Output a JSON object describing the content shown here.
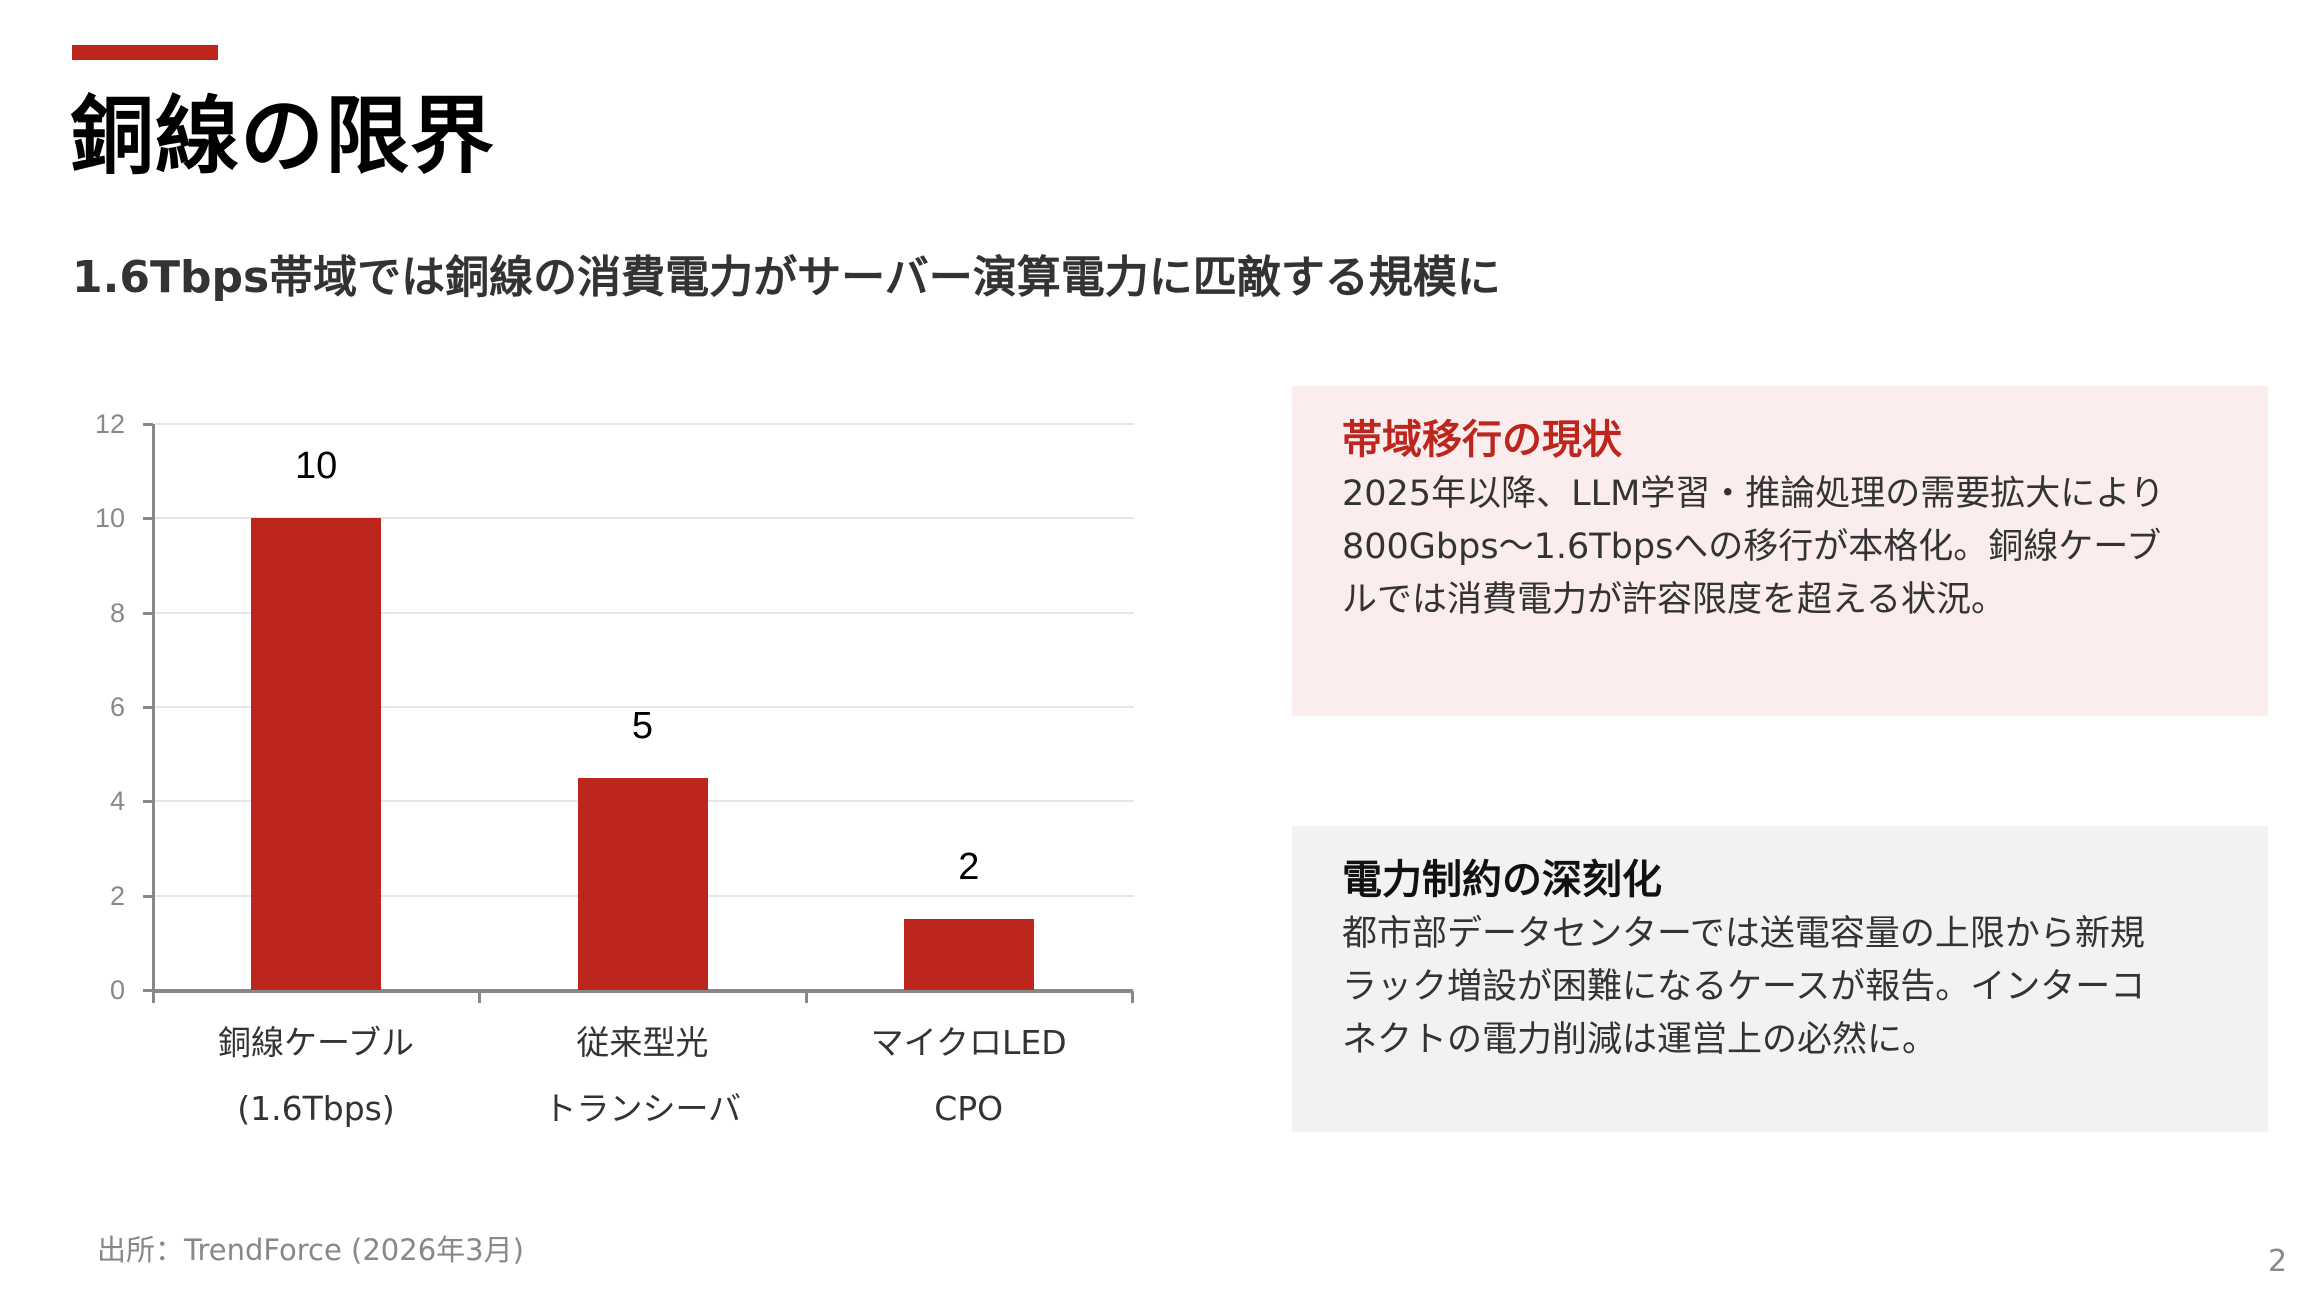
{
  "slide": {
    "title": "銅線の限界",
    "subtitle": "1.6Tbps帯域では銅線の消費電力がサーバー演算電力に匹敵する規模に",
    "accent_color": "#BC261D",
    "source": "出所：TrendForce (2026年3月)",
    "page_number": "2"
  },
  "chart_data": {
    "type": "bar",
    "title": "",
    "xlabel": "",
    "ylabel": "",
    "categories": [
      [
        "銅線ケーブル",
        "(1.6Tbps)"
      ],
      [
        "従来型光",
        "トランシーバ"
      ],
      [
        "マイクロLED",
        "CPO"
      ]
    ],
    "categories_flat": [
      "銅線ケーブル (1.6Tbps)",
      "従来型光トランシーバ",
      "マイクロLED CPO"
    ],
    "values": [
      10,
      4.5,
      1.5
    ],
    "data_labels": [
      "10",
      "5",
      "2"
    ],
    "ylim": [
      0,
      12
    ],
    "yticks": [
      0,
      2,
      4,
      6,
      8,
      10,
      12
    ],
    "grid": true,
    "legend": null,
    "bar_color": "#BC261D"
  },
  "panels": [
    {
      "heading": "帯域移行の現状",
      "heading_color": "#BC261D",
      "background": "#FBEDEE",
      "lines": [
        "2025年以降、LLM学習・推論処理の需要拡大により",
        "800Gbps〜1.6Tbpsへの移行が本格化。銅線ケーブ",
        "ルでは消費電力が許容限度を超える状況。"
      ]
    },
    {
      "heading": "電力制約の深刻化",
      "heading_color": "#111111",
      "background": "#F2F2F2",
      "lines": [
        "都市部データセンターでは送電容量の上限から新規",
        "ラック増設が困難になるケースが報告。インターコ",
        "ネクトの電力削減は運営上の必然に。"
      ]
    }
  ]
}
